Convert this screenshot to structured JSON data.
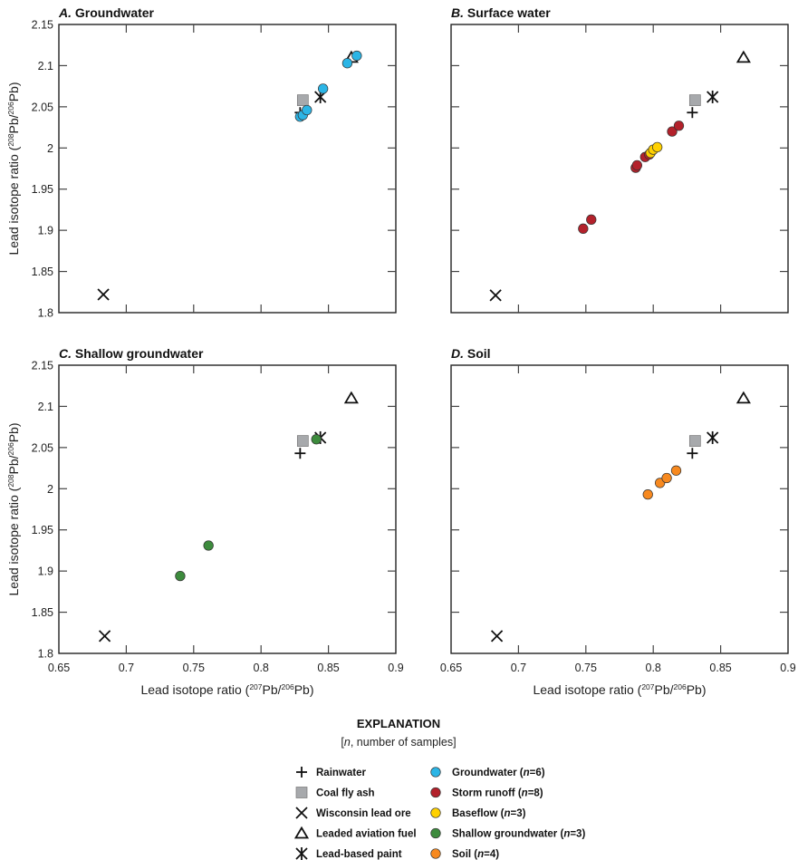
{
  "chart_data": [
    {
      "type": "scatter",
      "panel_letter": "A.",
      "title": "Groundwater",
      "xlabel": "",
      "ylabel": "Lead isotope ratio (208Pb/206Pb)",
      "xlim": [
        0.65,
        0.9
      ],
      "ylim": [
        1.8,
        2.15
      ],
      "show_x_tick_labels": false,
      "show_y_tick_labels": true,
      "series": [
        {
          "name": "Rainwater",
          "marker": "plus",
          "points": [
            [
              0.829,
              2.043
            ]
          ]
        },
        {
          "name": "Coal fly ash",
          "marker": "square",
          "points": [
            [
              0.831,
              2.058
            ]
          ]
        },
        {
          "name": "Wisconsin lead ore",
          "marker": "x",
          "points": [
            [
              0.683,
              1.822
            ]
          ]
        },
        {
          "name": "Leaded aviation fuel",
          "marker": "triangle",
          "points": [
            [
              0.867,
              2.11
            ]
          ]
        },
        {
          "name": "Lead-based paint",
          "marker": "asterisk",
          "points": [
            [
              0.844,
              2.062
            ]
          ]
        },
        {
          "name": "Groundwater",
          "marker": "circle",
          "color": "#2bb5e6",
          "points": [
            [
              0.829,
              2.038
            ],
            [
              0.831,
              2.04
            ],
            [
              0.834,
              2.046
            ],
            [
              0.846,
              2.072
            ],
            [
              0.864,
              2.103
            ],
            [
              0.871,
              2.112
            ]
          ]
        }
      ]
    },
    {
      "type": "scatter",
      "panel_letter": "B.",
      "title": "Surface water",
      "xlabel": "",
      "ylabel": "",
      "xlim": [
        0.65,
        0.9
      ],
      "ylim": [
        1.8,
        2.15
      ],
      "show_x_tick_labels": false,
      "show_y_tick_labels": false,
      "series": [
        {
          "name": "Rainwater",
          "marker": "plus",
          "points": [
            [
              0.829,
              2.043
            ]
          ]
        },
        {
          "name": "Coal fly ash",
          "marker": "square",
          "points": [
            [
              0.831,
              2.058
            ]
          ]
        },
        {
          "name": "Wisconsin lead ore",
          "marker": "x",
          "points": [
            [
              0.683,
              1.821
            ]
          ]
        },
        {
          "name": "Leaded aviation fuel",
          "marker": "triangle",
          "points": [
            [
              0.867,
              2.11
            ]
          ]
        },
        {
          "name": "Lead-based paint",
          "marker": "asterisk",
          "points": [
            [
              0.844,
              2.062
            ]
          ]
        },
        {
          "name": "Storm runoff",
          "marker": "circle",
          "color": "#b3212b",
          "points": [
            [
              0.748,
              1.902
            ],
            [
              0.754,
              1.913
            ],
            [
              0.787,
              1.976
            ],
            [
              0.788,
              1.979
            ],
            [
              0.794,
              1.989
            ],
            [
              0.797,
              1.992
            ],
            [
              0.814,
              2.02
            ],
            [
              0.819,
              2.027
            ]
          ]
        },
        {
          "name": "Baseflow",
          "marker": "circle",
          "color": "#ffd100",
          "points": [
            [
              0.798,
              1.994
            ],
            [
              0.8,
              1.998
            ],
            [
              0.803,
              2.001
            ]
          ]
        }
      ]
    },
    {
      "type": "scatter",
      "panel_letter": "C.",
      "title": "Shallow groundwater",
      "xlabel": "Lead isotope ratio (207Pb/206Pb)",
      "ylabel": "Lead isotope ratio (208Pb/206Pb)",
      "xlim": [
        0.65,
        0.9
      ],
      "ylim": [
        1.8,
        2.15
      ],
      "show_x_tick_labels": true,
      "show_y_tick_labels": true,
      "series": [
        {
          "name": "Rainwater",
          "marker": "plus",
          "points": [
            [
              0.829,
              2.043
            ]
          ]
        },
        {
          "name": "Coal fly ash",
          "marker": "square",
          "points": [
            [
              0.831,
              2.058
            ]
          ]
        },
        {
          "name": "Wisconsin lead ore",
          "marker": "x",
          "points": [
            [
              0.684,
              1.821
            ]
          ]
        },
        {
          "name": "Leaded aviation fuel",
          "marker": "triangle",
          "points": [
            [
              0.867,
              2.11
            ]
          ]
        },
        {
          "name": "Lead-based paint",
          "marker": "asterisk",
          "points": [
            [
              0.844,
              2.062
            ]
          ]
        },
        {
          "name": "Shallow groundwater",
          "marker": "circle",
          "color": "#3d8b3d",
          "points": [
            [
              0.74,
              1.894
            ],
            [
              0.761,
              1.931
            ],
            [
              0.841,
              2.06
            ]
          ]
        }
      ]
    },
    {
      "type": "scatter",
      "panel_letter": "D.",
      "title": "Soil",
      "xlabel": "Lead isotope ratio (207Pb/206Pb)",
      "ylabel": "",
      "xlim": [
        0.65,
        0.9
      ],
      "ylim": [
        1.8,
        2.15
      ],
      "show_x_tick_labels": true,
      "show_y_tick_labels": false,
      "series": [
        {
          "name": "Rainwater",
          "marker": "plus",
          "points": [
            [
              0.829,
              2.043
            ]
          ]
        },
        {
          "name": "Coal fly ash",
          "marker": "square",
          "points": [
            [
              0.831,
              2.058
            ]
          ]
        },
        {
          "name": "Wisconsin lead ore",
          "marker": "x",
          "points": [
            [
              0.684,
              1.821
            ]
          ]
        },
        {
          "name": "Leaded aviation fuel",
          "marker": "triangle",
          "points": [
            [
              0.867,
              2.11
            ]
          ]
        },
        {
          "name": "Lead-based paint",
          "marker": "asterisk",
          "points": [
            [
              0.844,
              2.062
            ]
          ]
        },
        {
          "name": "Soil",
          "marker": "circle",
          "color": "#f7891f",
          "points": [
            [
              0.796,
              1.993
            ],
            [
              0.805,
              2.007
            ],
            [
              0.81,
              2.013
            ],
            [
              0.817,
              2.022
            ]
          ]
        }
      ]
    }
  ],
  "axes": {
    "x_ticks": [
      "0.65",
      "0.7",
      "0.75",
      "0.8",
      "0.85",
      "0.9"
    ],
    "x_tick_values": [
      0.65,
      0.7,
      0.75,
      0.8,
      0.85,
      0.9
    ],
    "y_ticks": [
      "1.8",
      "1.85",
      "1.9",
      "1.95",
      "2",
      "2.05",
      "2.1",
      "2.15"
    ],
    "y_tick_values": [
      1.8,
      1.85,
      1.9,
      1.95,
      2.0,
      2.05,
      2.1,
      2.15
    ],
    "y_label_parts": {
      "prefix": "Lead isotope ratio (",
      "sup1": "208",
      "mid": "Pb/",
      "sup2": "206",
      "suffix": "Pb)"
    },
    "x_label_parts": {
      "prefix": "Lead isotope ratio (",
      "sup1": "207",
      "mid": "Pb/",
      "sup2": "206",
      "suffix": "Pb)"
    }
  },
  "legend": {
    "title": "EXPLANATION",
    "subtitle_italic": "n",
    "subtitle_rest": ", number of samples]",
    "subtitle_open": "[",
    "left": [
      {
        "label": "Rainwater",
        "marker": "plus"
      },
      {
        "label": "Coal fly ash",
        "marker": "square"
      },
      {
        "label": "Wisconsin lead ore",
        "marker": "x"
      },
      {
        "label": "Leaded aviation fuel",
        "marker": "triangle"
      },
      {
        "label": "Lead-based paint",
        "marker": "asterisk"
      }
    ],
    "right": [
      {
        "label": "Groundwater (",
        "n": "6",
        "marker": "circle",
        "color": "#2bb5e6"
      },
      {
        "label": "Storm runoff (",
        "n": "8",
        "marker": "circle",
        "color": "#b3212b"
      },
      {
        "label": "Baseflow (",
        "n": "3",
        "marker": "circle",
        "color": "#ffd100"
      },
      {
        "label": "Shallow groundwater (",
        "n": "3",
        "marker": "circle",
        "color": "#3d8b3d"
      },
      {
        "label": "Soil (",
        "n": "4",
        "marker": "circle",
        "color": "#f7891f"
      }
    ]
  },
  "colors": {
    "coal_fly_ash": "#a7a9ac",
    "frame": "#222222"
  }
}
